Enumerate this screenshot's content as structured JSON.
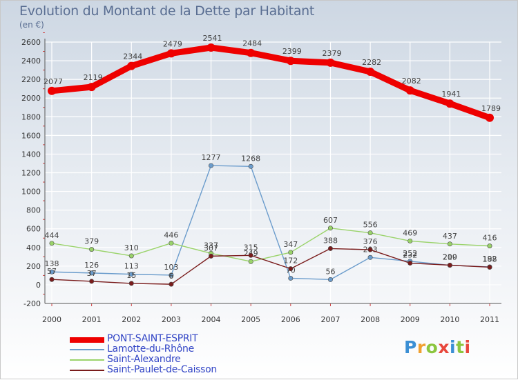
{
  "header": {
    "title": "Evolution du Montant de la Dette par Habitant",
    "subtitle": "(en €)"
  },
  "logo": {
    "text": "Proxiti",
    "letters": [
      "P",
      "r",
      "o",
      "x",
      "i",
      "t",
      "i"
    ],
    "colors": [
      "#3b8fd4",
      "#f0a030",
      "#8cc63f",
      "#e8473c",
      "#3b8fd4",
      "#8cc63f",
      "#e8473c"
    ]
  },
  "chart_data": {
    "type": "line",
    "title": "Evolution du Montant de la Dette par Habitant",
    "ylabel": "(en €)",
    "xlabel": "",
    "ylim": [
      -200,
      2600
    ],
    "yticks": [
      -200,
      0,
      200,
      400,
      600,
      800,
      1000,
      1200,
      1400,
      1600,
      1800,
      2000,
      2200,
      2400,
      2600
    ],
    "categories": [
      "2000",
      "2001",
      "2002",
      "2003",
      "2004",
      "2005",
      "2006",
      "2007",
      "2008",
      "2009",
      "2010",
      "2011"
    ],
    "grid": true,
    "legend_position": "bottom-left",
    "series": [
      {
        "name": "PONT-SAINT-ESPRIT",
        "color": "#ee0000",
        "values": [
          2077,
          2119,
          2344,
          2479,
          2541,
          2484,
          2399,
          2379,
          2282,
          2082,
          1941,
          1789
        ]
      },
      {
        "name": "Lamotte-du-Rhône",
        "color": "#6b9ccc",
        "values": [
          138,
          126,
          113,
          103,
          1277,
          1268,
          70,
          56,
          293,
          252,
          209,
          192
        ]
      },
      {
        "name": "Saint-Alexandre",
        "color": "#9ad36a",
        "values": [
          444,
          379,
          310,
          446,
          337,
          249,
          347,
          607,
          556,
          469,
          437,
          416
        ]
      },
      {
        "name": "Saint-Paulet-de-Caisson",
        "color": "#7a1c1c",
        "values": [
          57,
          37,
          15,
          6,
          307,
          315,
          172,
          388,
          376,
          232,
          210,
          188
        ]
      }
    ]
  }
}
